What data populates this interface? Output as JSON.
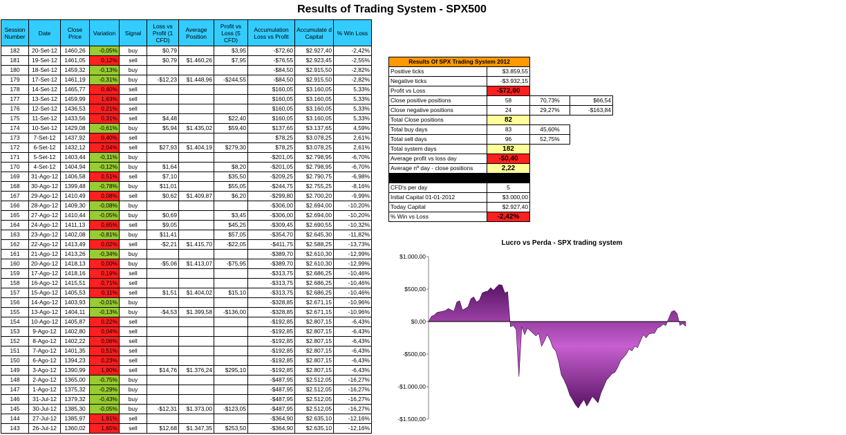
{
  "title": "Results of Trading System -  SPX500",
  "main_table": {
    "headers": [
      "Session Number",
      "Date",
      "Close Price",
      "Variation",
      "Signal",
      "Loss vs Profit (1 CFD)",
      "Average Position",
      "Profit vs Loss (5 CFD)",
      "Accumulation Loss vs Profit",
      "Accumulate d Capital",
      "% Win Loss"
    ],
    "rows": [
      [
        "182",
        "20-Set-12",
        "1460,26",
        "-0,05%",
        "buy",
        "$0,79",
        "",
        "$3,95",
        "-$72,60",
        "$2.927,40",
        "-2,42%"
      ],
      [
        "181",
        "19-Set-12",
        "1461,05",
        "0,12%",
        "sell",
        "$0,79",
        "$1.460,26",
        "$7,95",
        "-$76,55",
        "$2.923,45",
        "-2,55%"
      ],
      [
        "180",
        "18-Set-12",
        "1459,32",
        "-0,13%",
        "buy",
        "",
        "",
        "",
        "-$84,50",
        "$2.915,50",
        "-2,82%"
      ],
      [
        "179",
        "17-Set-12",
        "1461,19",
        "-0,31%",
        "buy",
        "-$12,23",
        "$1.448,96",
        "-$244,55",
        "-$84,50",
        "$2.915,50",
        "-2,82%"
      ],
      [
        "178",
        "14-Set-12",
        "1465,77",
        "0,40%",
        "sell",
        "",
        "",
        "",
        "$160,05",
        "$3.160,05",
        "5,33%"
      ],
      [
        "177",
        "13-Set-12",
        "1459,99",
        "1,63%",
        "sell",
        "",
        "",
        "",
        "$160,05",
        "$3.160,05",
        "5,33%"
      ],
      [
        "176",
        "12-Set-12",
        "1436,53",
        "0,21%",
        "sell",
        "",
        "",
        "",
        "$160,05",
        "$3.160,05",
        "5,33%"
      ],
      [
        "175",
        "11-Set-12",
        "1433,56",
        "0,31%",
        "sell",
        "$4,48",
        "",
        "$22,40",
        "$160,05",
        "$3.160,05",
        "5,33%"
      ],
      [
        "174",
        "10-Set-12",
        "1429,08",
        "-0,61%",
        "buy",
        "$5,94",
        "$1.435,02",
        "$59,40",
        "$137,65",
        "$3.137,65",
        "4,59%"
      ],
      [
        "173",
        "7-Set-12",
        "1437,92",
        "0,40%",
        "sell",
        "",
        "",
        "",
        "$78,25",
        "$3.078,25",
        "2,61%"
      ],
      [
        "172",
        "6-Set-12",
        "1432,12",
        "2,04%",
        "sell",
        "$27,93",
        "$1.404,19",
        "$279,30",
        "$78,25",
        "$3.078,25",
        "2,61%"
      ],
      [
        "171",
        "5-Set-12",
        "1403,44",
        "-0,11%",
        "buy",
        "",
        "",
        "",
        "-$201,05",
        "$2.798,95",
        "-6,70%"
      ],
      [
        "170",
        "4-Set-12",
        "1404,94",
        "-0,12%",
        "buy",
        "$1,64",
        "",
        "$8,20",
        "-$201,05",
        "$2.798,95",
        "-6,70%"
      ],
      [
        "169",
        "31-Ago-12",
        "1406,58",
        "0,51%",
        "sell",
        "$7,10",
        "",
        "$35,50",
        "-$209,25",
        "$2.790,75",
        "-6,98%"
      ],
      [
        "168",
        "30-Ago-12",
        "1399,48",
        "-0,78%",
        "buy",
        "$11,01",
        "",
        "$55,05",
        "-$244,75",
        "$2.755,25",
        "-8,16%"
      ],
      [
        "167",
        "29-Ago-12",
        "1410,49",
        "0,08%",
        "sell",
        "$0,62",
        "$1.409,87",
        "$6,20",
        "-$299,80",
        "$2.700,20",
        "-9,99%"
      ],
      [
        "166",
        "28-Ago-12",
        "1409,30",
        "-0,08%",
        "buy",
        "",
        "",
        "",
        "-$306,00",
        "$2.694,00",
        "-10,20%"
      ],
      [
        "165",
        "27-Ago-12",
        "1410,44",
        "-0,05%",
        "buy",
        "$0,69",
        "",
        "$3,45",
        "-$306,00",
        "$2.694,00",
        "-10,20%"
      ],
      [
        "164",
        "24-Ago-12",
        "1411,13",
        "0,65%",
        "sell",
        "$9,05",
        "",
        "$45,25",
        "-$309,45",
        "$2.690,55",
        "-10,32%"
      ],
      [
        "163",
        "23-Ago-12",
        "1402,08",
        "-0,81%",
        "buy",
        "$11,41",
        "",
        "$57,05",
        "-$354,70",
        "$2.645,30",
        "-11,82%"
      ],
      [
        "162",
        "22-Ago-12",
        "1413,49",
        "0,02%",
        "sell",
        "-$2,21",
        "$1.415,70",
        "-$22,05",
        "-$411,75",
        "$2.588,25",
        "-13,73%"
      ],
      [
        "161",
        "21-Ago-12",
        "1413,26",
        "-0,34%",
        "buy",
        "",
        "",
        "",
        "-$389,70",
        "$2.610,30",
        "-12,99%"
      ],
      [
        "160",
        "20-Ago-12",
        "1418,13",
        "0,00%",
        "buy",
        "-$5,06",
        "$1.413,07",
        "-$75,95",
        "-$389,70",
        "$2.610,30",
        "-12,99%"
      ],
      [
        "159",
        "17-Ago-12",
        "1418,16",
        "0,19%",
        "sell",
        "",
        "",
        "",
        "-$313,75",
        "$2.686,25",
        "-10,46%"
      ],
      [
        "158",
        "16-Ago-12",
        "1415,51",
        "0,71%",
        "sell",
        "",
        "",
        "",
        "-$313,75",
        "$2.686,25",
        "-10,46%"
      ],
      [
        "157",
        "15-Ago-12",
        "1405,53",
        "0,11%",
        "sell",
        "$1,51",
        "$1.404,02",
        "$15,10",
        "-$313,75",
        "$2.686,25",
        "-10,46%"
      ],
      [
        "156",
        "14-Ago-12",
        "1403,93",
        "-0,01%",
        "buy",
        "",
        "",
        "",
        "-$328,85",
        "$2.671,15",
        "-10,96%"
      ],
      [
        "155",
        "13-Ago-12",
        "1404,11",
        "-0,13%",
        "buy",
        "-$4,53",
        "$1.399,58",
        "-$136,00",
        "-$328,85",
        "$2.671,15",
        "-10,96%"
      ],
      [
        "154",
        "10-Ago-12",
        "1405,87",
        "0,22%",
        "sell",
        "",
        "",
        "",
        "-$192,85",
        "$2.807,15",
        "-6,43%"
      ],
      [
        "153",
        "9-Ago-12",
        "1402,80",
        "0,04%",
        "sell",
        "",
        "",
        "",
        "-$192,85",
        "$2.807,15",
        "-6,43%"
      ],
      [
        "152",
        "8-Ago-12",
        "1402,22",
        "0,06%",
        "sell",
        "",
        "",
        "",
        "-$192,85",
        "$2.807,15",
        "-6,43%"
      ],
      [
        "151",
        "7-Ago-12",
        "1401,35",
        "0,51%",
        "sell",
        "",
        "",
        "",
        "-$192,85",
        "$2.807,15",
        "-6,43%"
      ],
      [
        "150",
        "6-Ago-12",
        "1394,23",
        "0,23%",
        "sell",
        "",
        "",
        "",
        "-$192,85",
        "$2.807,15",
        "-6,43%"
      ],
      [
        "149",
        "3-Ago-12",
        "1390,99",
        "1,90%",
        "sell",
        "$14,76",
        "$1.376,24",
        "$295,10",
        "-$192,85",
        "$2.807,15",
        "-6,43%"
      ],
      [
        "148",
        "2-Ago-12",
        "1365,00",
        "-0,75%",
        "buy",
        "",
        "",
        "",
        "-$487,95",
        "$2.512,05",
        "-16,27%"
      ],
      [
        "147",
        "1-Ago-12",
        "1375,32",
        "-0,29%",
        "buy",
        "",
        "",
        "",
        "-$487,95",
        "$2.512,05",
        "-16,27%"
      ],
      [
        "146",
        "31-Jul-12",
        "1379,32",
        "-0,43%",
        "buy",
        "",
        "",
        "",
        "-$487,95",
        "$2.512,05",
        "-16,27%"
      ],
      [
        "145",
        "30-Jul-12",
        "1385,30",
        "-0,05%",
        "buy",
        "-$12,31",
        "$1.373,00",
        "-$123,05",
        "-$487,95",
        "$2.512,05",
        "-16,27%"
      ],
      [
        "144",
        "27-Jul-12",
        "1385,97",
        "1,91%",
        "sell",
        "",
        "",
        "",
        "-$364,90",
        "$2.635,10",
        "-12,16%"
      ],
      [
        "143",
        "26-Jul-12",
        "1360,02",
        "1,65%",
        "sell",
        "$12,68",
        "$1.347,35",
        "$253,50",
        "-$364,90",
        "$2.635,10",
        "-12,16%"
      ]
    ]
  },
  "summary": {
    "title": "Results Of SPX Trading System 2012",
    "rows": [
      {
        "label": "Positive ticks",
        "value": "$3.859,55",
        "hl": ""
      },
      {
        "label": "Negative ticks",
        "value": "-$3.932,15",
        "hl": ""
      },
      {
        "label": "Profit vs Loss",
        "value": "-$72,60",
        "hl": "red"
      },
      {
        "label": "Close positive positions",
        "value": "58",
        "pct": "70,73%",
        "amt": "$66,54",
        "hl": "",
        "c": true
      },
      {
        "label": "Close negative positions",
        "value": "24",
        "pct": "29,27%",
        "amt": "-$163,84",
        "hl": "",
        "c": true
      },
      {
        "label": "Total Close positions",
        "value": "82",
        "hl": "yel"
      },
      {
        "label": "Total buy days",
        "value": "83",
        "pct": "45,60%",
        "hl": "",
        "c": true
      },
      {
        "label": "Total sell days",
        "value": "96",
        "pct": "52,75%",
        "hl": "",
        "c": true
      },
      {
        "label": "Total system days",
        "value": "182",
        "hl": "yel"
      },
      {
        "label": "Average profit vs loss day",
        "value": "-$0,40",
        "hl": "red"
      },
      {
        "label": "Average nº day - close positions",
        "value": "2,22",
        "hl": "yel"
      },
      {
        "label": "",
        "value": "",
        "hl": "black"
      },
      {
        "label": "CFD's per day",
        "value": "5",
        "hl": "",
        "c": true
      },
      {
        "label": "Initial Capital 01-01-2012",
        "value": "$3.000,00",
        "hl": ""
      },
      {
        "label": "Today Capital",
        "value": "$2.927,40",
        "hl": ""
      },
      {
        "label": "% Win vs Loss",
        "value": "-2,42%",
        "hl": "red"
      }
    ]
  },
  "chart_data": {
    "type": "area",
    "title": "Lucro vs Perda - SPX trading system",
    "ylim": [
      -1500,
      1000
    ],
    "yticks": [
      "$1.000,00",
      "$500,00",
      "$0,00",
      "-$500,00",
      "-$1.000,00",
      "-$1.500,00"
    ],
    "ytick_values": [
      1000,
      500,
      0,
      -500,
      -1000,
      -1500
    ],
    "x": [
      0,
      2,
      4,
      6,
      8,
      10,
      12,
      14,
      16,
      18,
      20,
      22,
      24,
      26,
      28,
      30,
      32,
      34,
      36,
      38,
      40,
      42,
      44,
      46,
      48,
      50,
      52,
      54,
      56,
      58,
      60,
      62,
      64,
      66,
      68,
      70,
      72,
      74,
      76,
      78,
      80,
      82,
      84,
      86,
      88,
      90,
      92,
      94,
      96,
      98,
      100,
      102,
      104,
      106,
      108,
      110,
      112,
      114,
      116,
      118,
      120,
      122,
      124,
      126,
      128,
      130,
      132,
      134,
      136,
      138,
      140,
      142,
      144,
      146,
      148,
      150,
      152,
      154,
      156,
      158,
      160,
      162,
      164,
      166,
      168,
      170,
      172,
      174,
      176,
      178,
      180,
      182
    ],
    "values": [
      0,
      80,
      100,
      140,
      150,
      160,
      170,
      200,
      180,
      160,
      300,
      320,
      180,
      200,
      230,
      350,
      380,
      300,
      330,
      440,
      460,
      470,
      520,
      480,
      530,
      570,
      560,
      440,
      460,
      -80,
      -60,
      -120,
      -850,
      -80,
      -200,
      -100,
      -140,
      -180,
      -220,
      -180,
      -380,
      -300,
      -200,
      -280,
      -400,
      -450,
      -600,
      -820,
      -900,
      -1000,
      -1130,
      -1200,
      -1280,
      -1330,
      -1260,
      -1200,
      -1300,
      -1230,
      -1150,
      -1200,
      -1250,
      -1100,
      -1000,
      -900,
      -850,
      -800,
      -780,
      -700,
      -600,
      -550,
      -500,
      -420,
      -450,
      -380,
      -400,
      -300,
      -200,
      -250,
      -190,
      -180,
      -180,
      -100,
      -80,
      -40,
      -60,
      50,
      150,
      170,
      120,
      -60,
      -30,
      -72.6
    ],
    "colors": {
      "fill_dark": "#5a1466",
      "fill_light": "#c65fcf",
      "axis": "#808080"
    }
  }
}
